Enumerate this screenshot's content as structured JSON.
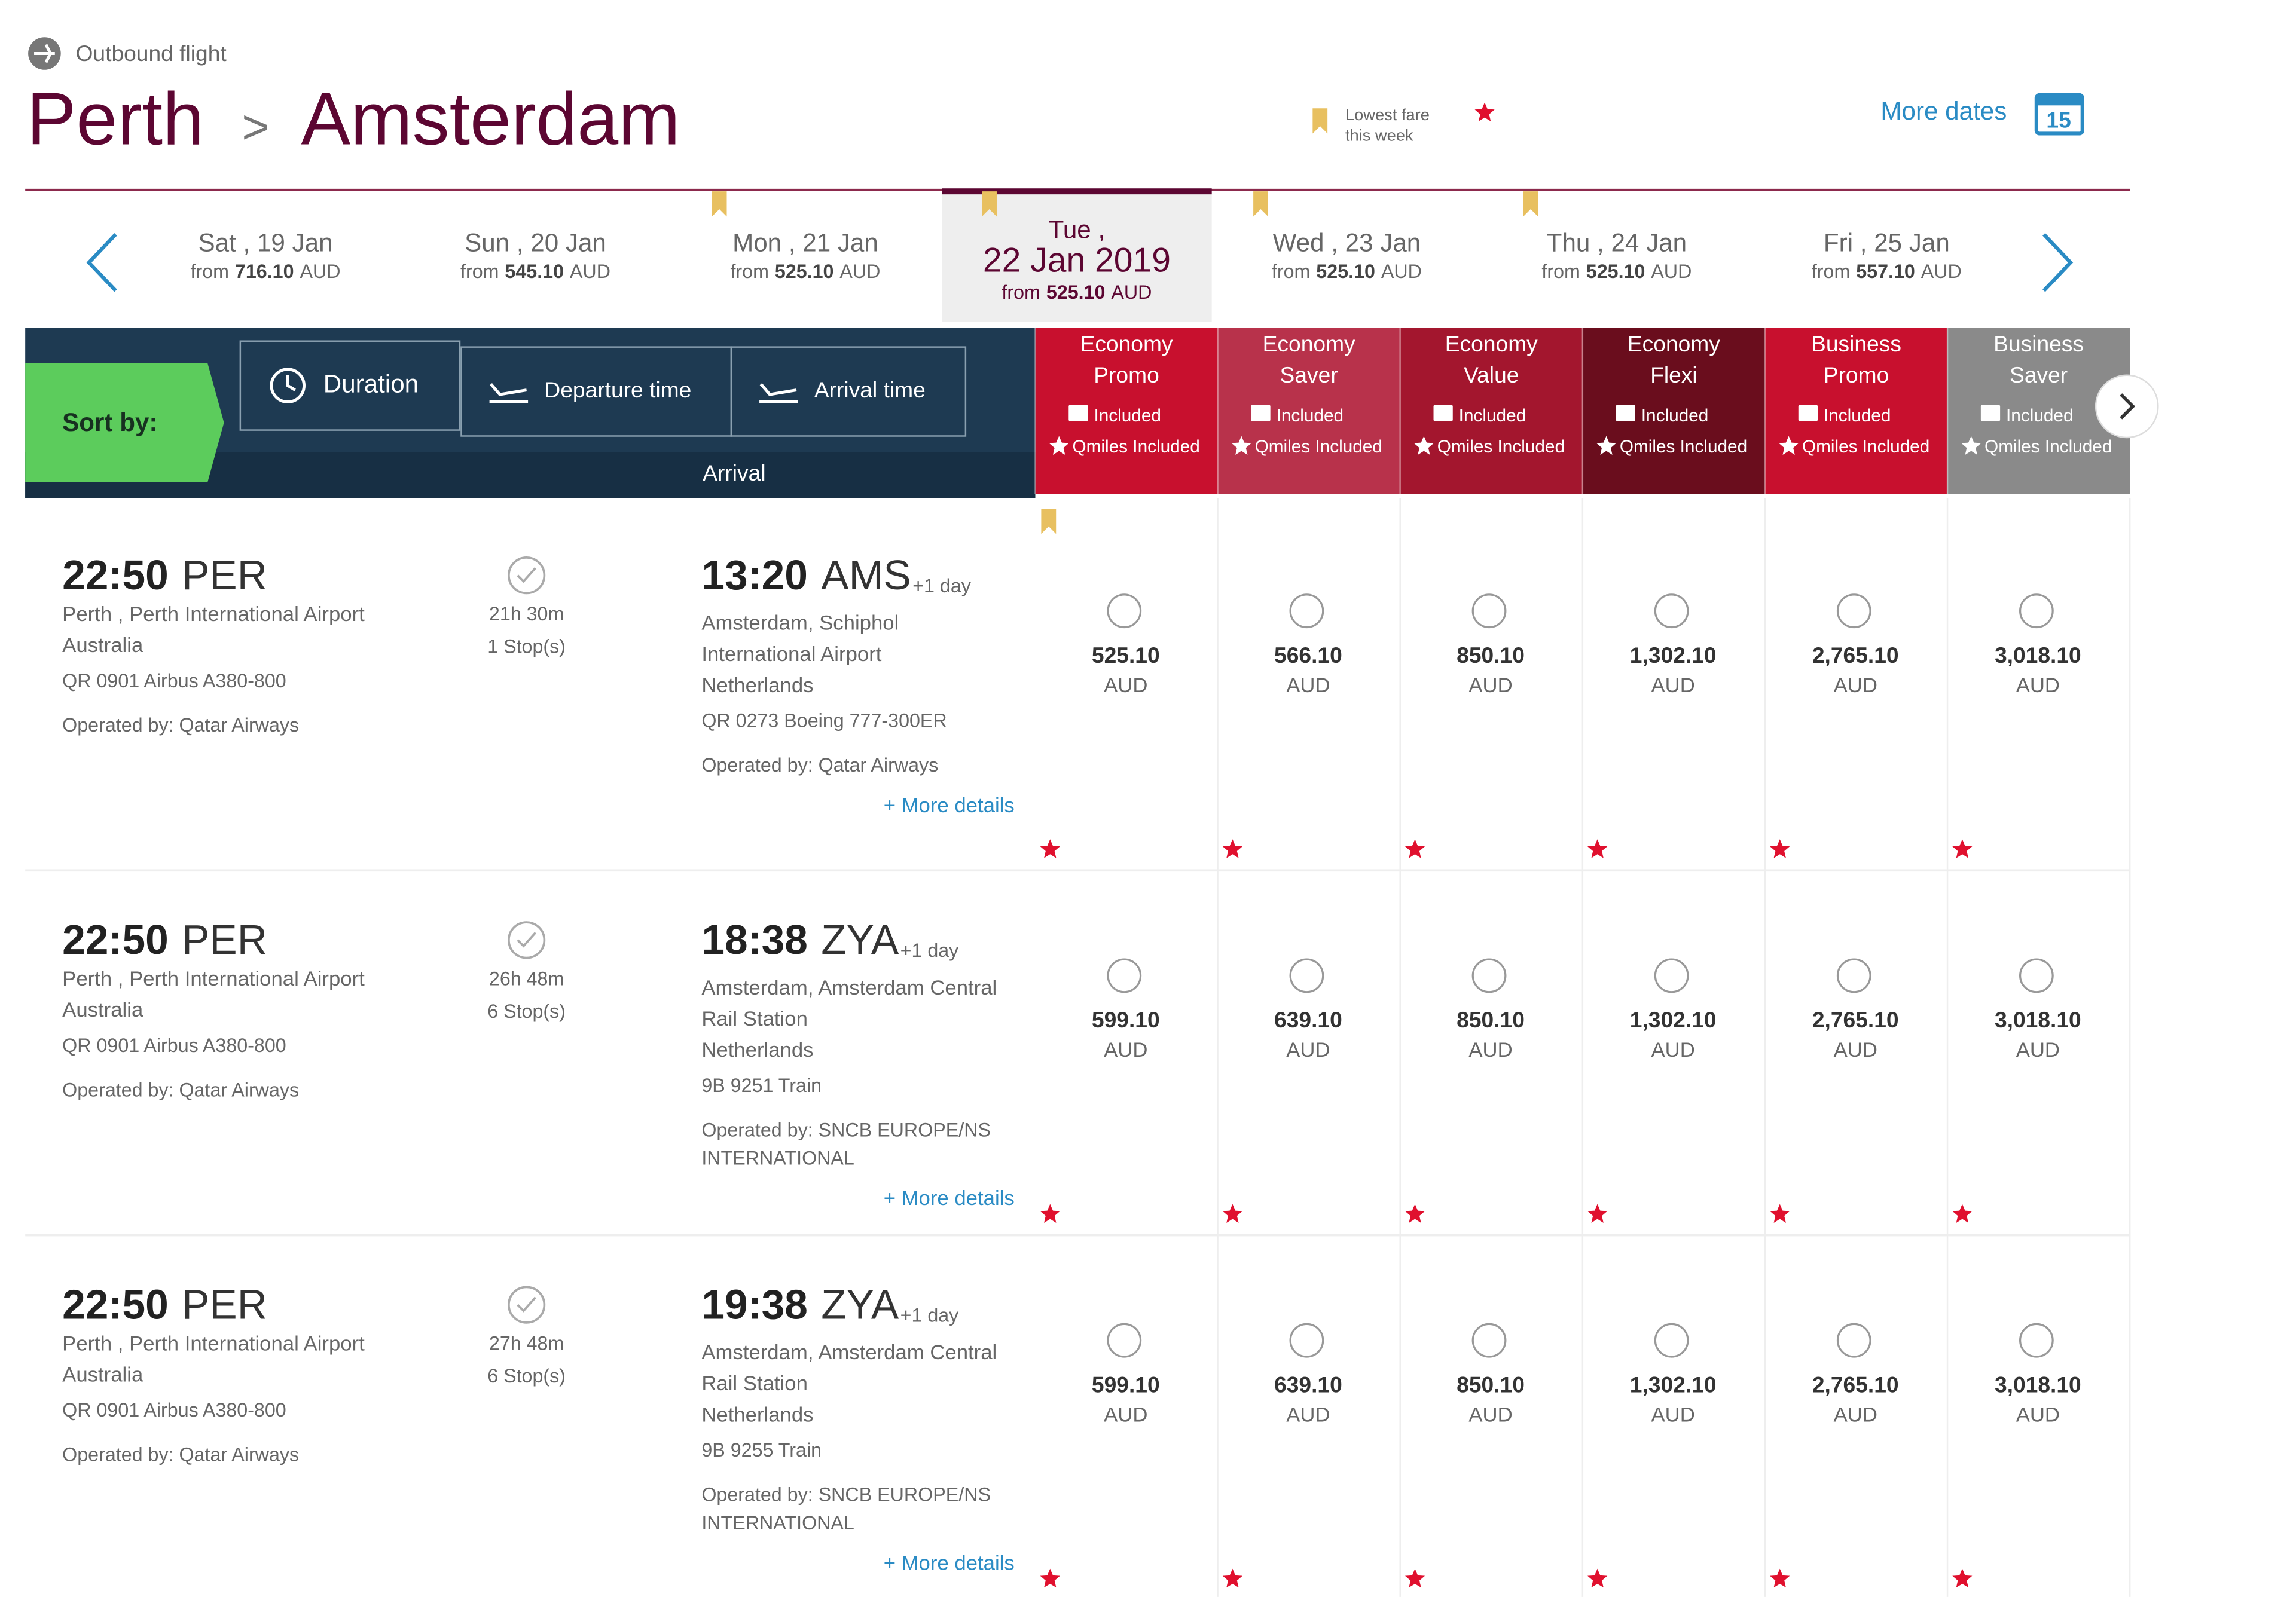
{
  "header": {
    "label": "Outbound flight",
    "origin": "Perth",
    "separator": ">",
    "destination": "Amsterdam",
    "legend": [
      "Lowest fare",
      "this week"
    ],
    "more_dates": "More dates",
    "calendar_day": "15"
  },
  "dates": [
    {
      "day": "Sat , 19 Jan",
      "prefix": "from",
      "price": "716.10",
      "currency": "AUD"
    },
    {
      "day": "Sun , 20 Jan",
      "prefix": "from",
      "price": "545.10",
      "currency": "AUD"
    },
    {
      "day": "Mon , 21 Jan",
      "prefix": "from",
      "price": "525.10",
      "currency": "AUD"
    },
    {
      "day": "Tue ,",
      "date": "22 Jan 2019",
      "prefix": "from",
      "price": "525.10",
      "currency": "AUD"
    },
    {
      "day": "Wed , 23 Jan",
      "prefix": "from",
      "price": "525.10",
      "currency": "AUD"
    },
    {
      "day": "Thu , 24 Jan",
      "prefix": "from",
      "price": "525.10",
      "currency": "AUD"
    },
    {
      "day": "Fri , 25 Jan",
      "prefix": "from",
      "price": "557.10",
      "currency": "AUD"
    }
  ],
  "sort": {
    "label": "Sort by:",
    "options": [
      "Duration",
      "Departure time",
      "Arrival time"
    ],
    "column": "Arrival"
  },
  "fare_classes": [
    {
      "name": [
        "Economy",
        "Promo"
      ],
      "baggage": "Included",
      "miles": "Qmiles Included",
      "color": "#c8102e"
    },
    {
      "name": [
        "Economy",
        "Saver"
      ],
      "baggage": "Included",
      "miles": "Qmiles Included",
      "color": "#b8324b"
    },
    {
      "name": [
        "Economy",
        "Value"
      ],
      "baggage": "Included",
      "miles": "Qmiles Included",
      "color": "#a3162e"
    },
    {
      "name": [
        "Economy",
        "Flexi"
      ],
      "baggage": "Included",
      "miles": "Qmiles Included",
      "color": "#6a0d1d"
    },
    {
      "name": [
        "Business",
        "Promo"
      ],
      "baggage": "Included",
      "miles": "Qmiles Included",
      "color": "#c8102e"
    },
    {
      "name": [
        "Business",
        "Saver"
      ],
      "baggage": "Included",
      "miles": "Qmiles Included",
      "color": "#8a8a8a"
    }
  ],
  "flights": [
    {
      "departure": {
        "time": "22:50",
        "code": "PER",
        "place": "Perth , Perth International Airport",
        "country": "Australia",
        "flight": "QR 0901 Airbus A380-800",
        "operator": "Operated by: Qatar Airways"
      },
      "duration": "21h 30m",
      "stops": "1 Stop(s)",
      "arrival": {
        "time": "13:20",
        "code": "AMS",
        "next_day": "+1 day",
        "place": [
          "Amsterdam, Schiphol",
          "International Airport"
        ],
        "country": "Netherlands",
        "flight": "QR 0273 Boeing 777-300ER",
        "operator": [
          "Operated by: Qatar Airways"
        ]
      },
      "more": "+ More details",
      "fares": [
        {
          "price": "525.10",
          "currency": "AUD"
        },
        {
          "price": "566.10",
          "currency": "AUD"
        },
        {
          "price": "850.10",
          "currency": "AUD"
        },
        {
          "price": "1,302.10",
          "currency": "AUD"
        },
        {
          "price": "2,765.10",
          "currency": "AUD"
        },
        {
          "price": "3,018.10",
          "currency": "AUD"
        }
      ]
    },
    {
      "departure": {
        "time": "22:50",
        "code": "PER",
        "place": "Perth , Perth International Airport",
        "country": "Australia",
        "flight": "QR 0901 Airbus A380-800",
        "operator": "Operated by: Qatar Airways"
      },
      "duration": "26h 48m",
      "stops": "6 Stop(s)",
      "arrival": {
        "time": "18:38",
        "code": "ZYA",
        "next_day": "+1 day",
        "place": [
          "Amsterdam, Amsterdam Central",
          "Rail Station"
        ],
        "country": "Netherlands",
        "flight": "9B 9251 Train",
        "operator": [
          "Operated by: SNCB EUROPE/NS",
          "INTERNATIONAL"
        ]
      },
      "more": "+ More details",
      "fares": [
        {
          "price": "599.10",
          "currency": "AUD"
        },
        {
          "price": "639.10",
          "currency": "AUD"
        },
        {
          "price": "850.10",
          "currency": "AUD"
        },
        {
          "price": "1,302.10",
          "currency": "AUD"
        },
        {
          "price": "2,765.10",
          "currency": "AUD"
        },
        {
          "price": "3,018.10",
          "currency": "AUD"
        }
      ]
    },
    {
      "departure": {
        "time": "22:50",
        "code": "PER",
        "place": "Perth , Perth International Airport",
        "country": "Australia",
        "flight": "QR 0901 Airbus A380-800",
        "operator": "Operated by: Qatar Airways"
      },
      "duration": "27h 48m",
      "stops": "6 Stop(s)",
      "arrival": {
        "time": "19:38",
        "code": "ZYA",
        "next_day": "+1 day",
        "place": [
          "Amsterdam, Amsterdam Central",
          "Rail Station"
        ],
        "country": "Netherlands",
        "flight": "9B 9255 Train",
        "operator": [
          "Operated by: SNCB EUROPE/NS",
          "INTERNATIONAL"
        ]
      },
      "more": "+ More details",
      "fares": [
        {
          "price": "599.10",
          "currency": "AUD"
        },
        {
          "price": "639.10",
          "currency": "AUD"
        },
        {
          "price": "850.10",
          "currency": "AUD"
        },
        {
          "price": "1,302.10",
          "currency": "AUD"
        },
        {
          "price": "2,765.10",
          "currency": "AUD"
        },
        {
          "price": "3,018.10",
          "currency": "AUD"
        }
      ]
    }
  ]
}
